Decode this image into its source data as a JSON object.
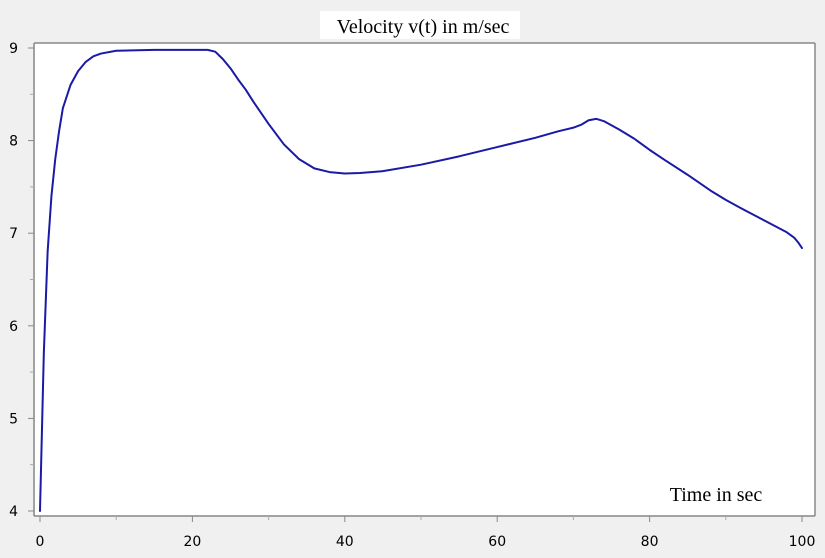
{
  "chart_data": {
    "type": "line",
    "title": "Velocity v(t) in m/sec",
    "xlabel": "Time in sec",
    "ylabel": "",
    "xlim": [
      0,
      100
    ],
    "ylim": [
      4,
      9
    ],
    "x_ticks": [
      "0",
      "20",
      "40",
      "60",
      "80",
      "100"
    ],
    "y_ticks": [
      "4",
      "5",
      "6",
      "7",
      "8",
      "9"
    ],
    "grid": false,
    "line_color": "#1a1aa6",
    "series": [
      {
        "x": [
          0,
          0.5,
          1,
          1.5,
          2,
          2.5,
          3,
          4,
          5,
          6,
          7,
          8,
          10,
          15,
          20,
          22,
          23,
          24,
          25,
          26,
          27,
          28,
          30,
          32,
          34,
          36,
          38,
          40,
          42,
          45,
          50,
          55,
          60,
          65,
          68,
          70,
          71,
          72,
          73,
          74,
          76,
          78,
          80,
          82,
          85,
          88,
          90,
          92,
          95,
          98,
          99,
          99.5,
          100
        ],
        "y": [
          4.0,
          5.7,
          6.8,
          7.4,
          7.8,
          8.1,
          8.35,
          8.6,
          8.75,
          8.85,
          8.91,
          8.94,
          8.97,
          8.98,
          8.98,
          8.98,
          8.96,
          8.88,
          8.78,
          8.66,
          8.55,
          8.42,
          8.18,
          7.96,
          7.8,
          7.7,
          7.66,
          7.645,
          7.65,
          7.67,
          7.74,
          7.83,
          7.93,
          8.03,
          8.1,
          8.14,
          8.17,
          8.22,
          8.235,
          8.21,
          8.12,
          8.02,
          7.9,
          7.79,
          7.63,
          7.46,
          7.36,
          7.27,
          7.14,
          7.01,
          6.95,
          6.9,
          6.84
        ]
      }
    ]
  }
}
